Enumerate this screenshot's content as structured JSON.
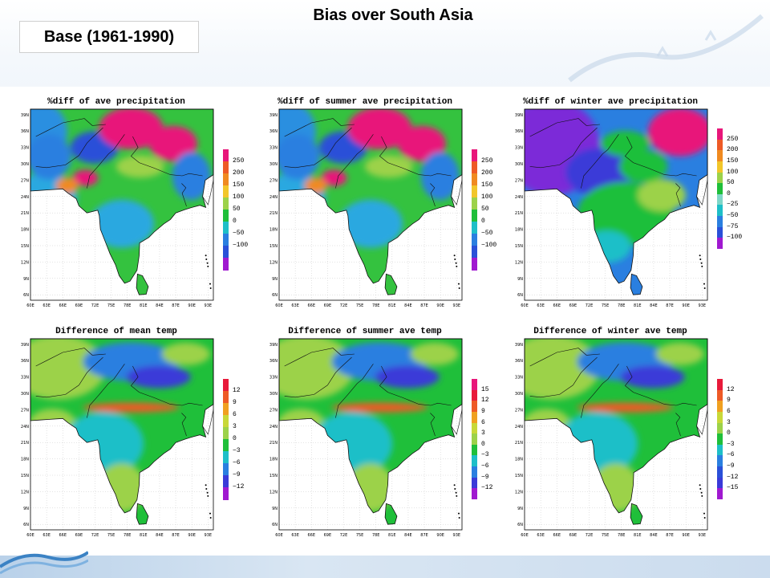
{
  "slide": {
    "title": "Bias over South Asia",
    "subtitle_box": "Base (1961-1990)"
  },
  "axes": {
    "lat_labels": [
      "39N",
      "36N",
      "33N",
      "30N",
      "27N",
      "24N",
      "21N",
      "18N",
      "15N",
      "12N",
      "9N",
      "6N"
    ],
    "lon_labels": [
      "60E",
      "63E",
      "66E",
      "69E",
      "72E",
      "75E",
      "78E",
      "81E",
      "84E",
      "87E",
      "90E",
      "93E"
    ]
  },
  "panels": [
    {
      "id": "p1",
      "title": "%diff of ave precipitation",
      "scheme": "precip",
      "legend": {
        "labels": [
          "250",
          "200",
          "150",
          "100",
          "50",
          "0",
          "−50",
          "−100"
        ],
        "colors": [
          "#e8167a",
          "#ee5a26",
          "#f08a20",
          "#f2c62a",
          "#9cd24a",
          "#1fbf3a",
          "#1ebfc8",
          "#2a7fe0",
          "#2a50d8",
          "#a019d0"
        ]
      }
    },
    {
      "id": "p2",
      "title": "%diff of summer ave precipitation",
      "scheme": "precip",
      "legend": {
        "labels": [
          "250",
          "200",
          "150",
          "100",
          "50",
          "0",
          "−50",
          "−100"
        ],
        "colors": [
          "#e8167a",
          "#ee5a26",
          "#f08a20",
          "#f2c62a",
          "#9cd24a",
          "#1fbf3a",
          "#1ebfc8",
          "#2a7fe0",
          "#2a50d8",
          "#a019d0"
        ]
      }
    },
    {
      "id": "p3",
      "title": "%diff of winter ave precipitation",
      "scheme": "precip_winter",
      "legend": {
        "labels": [
          "250",
          "200",
          "150",
          "100",
          "50",
          "0",
          "−25",
          "−50",
          "−75",
          "−100"
        ],
        "colors": [
          "#e8167a",
          "#ee5a26",
          "#f08a20",
          "#f2c62a",
          "#9cd24a",
          "#1fbf3a",
          "#7fd6c8",
          "#1ebfc8",
          "#2a7fe0",
          "#2a50d8",
          "#a019d0"
        ]
      }
    },
    {
      "id": "p4",
      "title": "Difference of mean temp",
      "scheme": "temp",
      "legend": {
        "labels": [
          "12",
          "9",
          "6",
          "3",
          "0",
          "−3",
          "−6",
          "−9",
          "−12"
        ],
        "colors": [
          "#e81a3a",
          "#ee5a26",
          "#f0a020",
          "#c8d838",
          "#9cd24a",
          "#1fbf3a",
          "#1ebfc8",
          "#2a7fe0",
          "#3a3ad8",
          "#a019d0"
        ]
      }
    },
    {
      "id": "p5",
      "title": "Difference of summer ave temp",
      "scheme": "temp",
      "legend": {
        "labels": [
          "15",
          "12",
          "9",
          "6",
          "3",
          "0",
          "−3",
          "−6",
          "−9",
          "−12"
        ],
        "colors": [
          "#e8167a",
          "#e81a3a",
          "#ee5a26",
          "#f0a020",
          "#c8d838",
          "#9cd24a",
          "#1fbf3a",
          "#1ebfc8",
          "#2a7fe0",
          "#3a3ad8",
          "#a019d0"
        ]
      }
    },
    {
      "id": "p6",
      "title": "Difference of winter ave temp",
      "scheme": "temp",
      "legend": {
        "labels": [
          "12",
          "9",
          "6",
          "3",
          "0",
          "−3",
          "−6",
          "−9",
          "−12",
          "−15"
        ],
        "colors": [
          "#e81a3a",
          "#ee5a26",
          "#f0a020",
          "#c8d838",
          "#9cd24a",
          "#1fbf3a",
          "#1ebfc8",
          "#2a7fe0",
          "#2a50d8",
          "#3a3ad8",
          "#a019d0"
        ]
      }
    }
  ],
  "icons": {
    "logo": "wave-logo-icon",
    "decoration": "great-wall-watermark-icon"
  }
}
